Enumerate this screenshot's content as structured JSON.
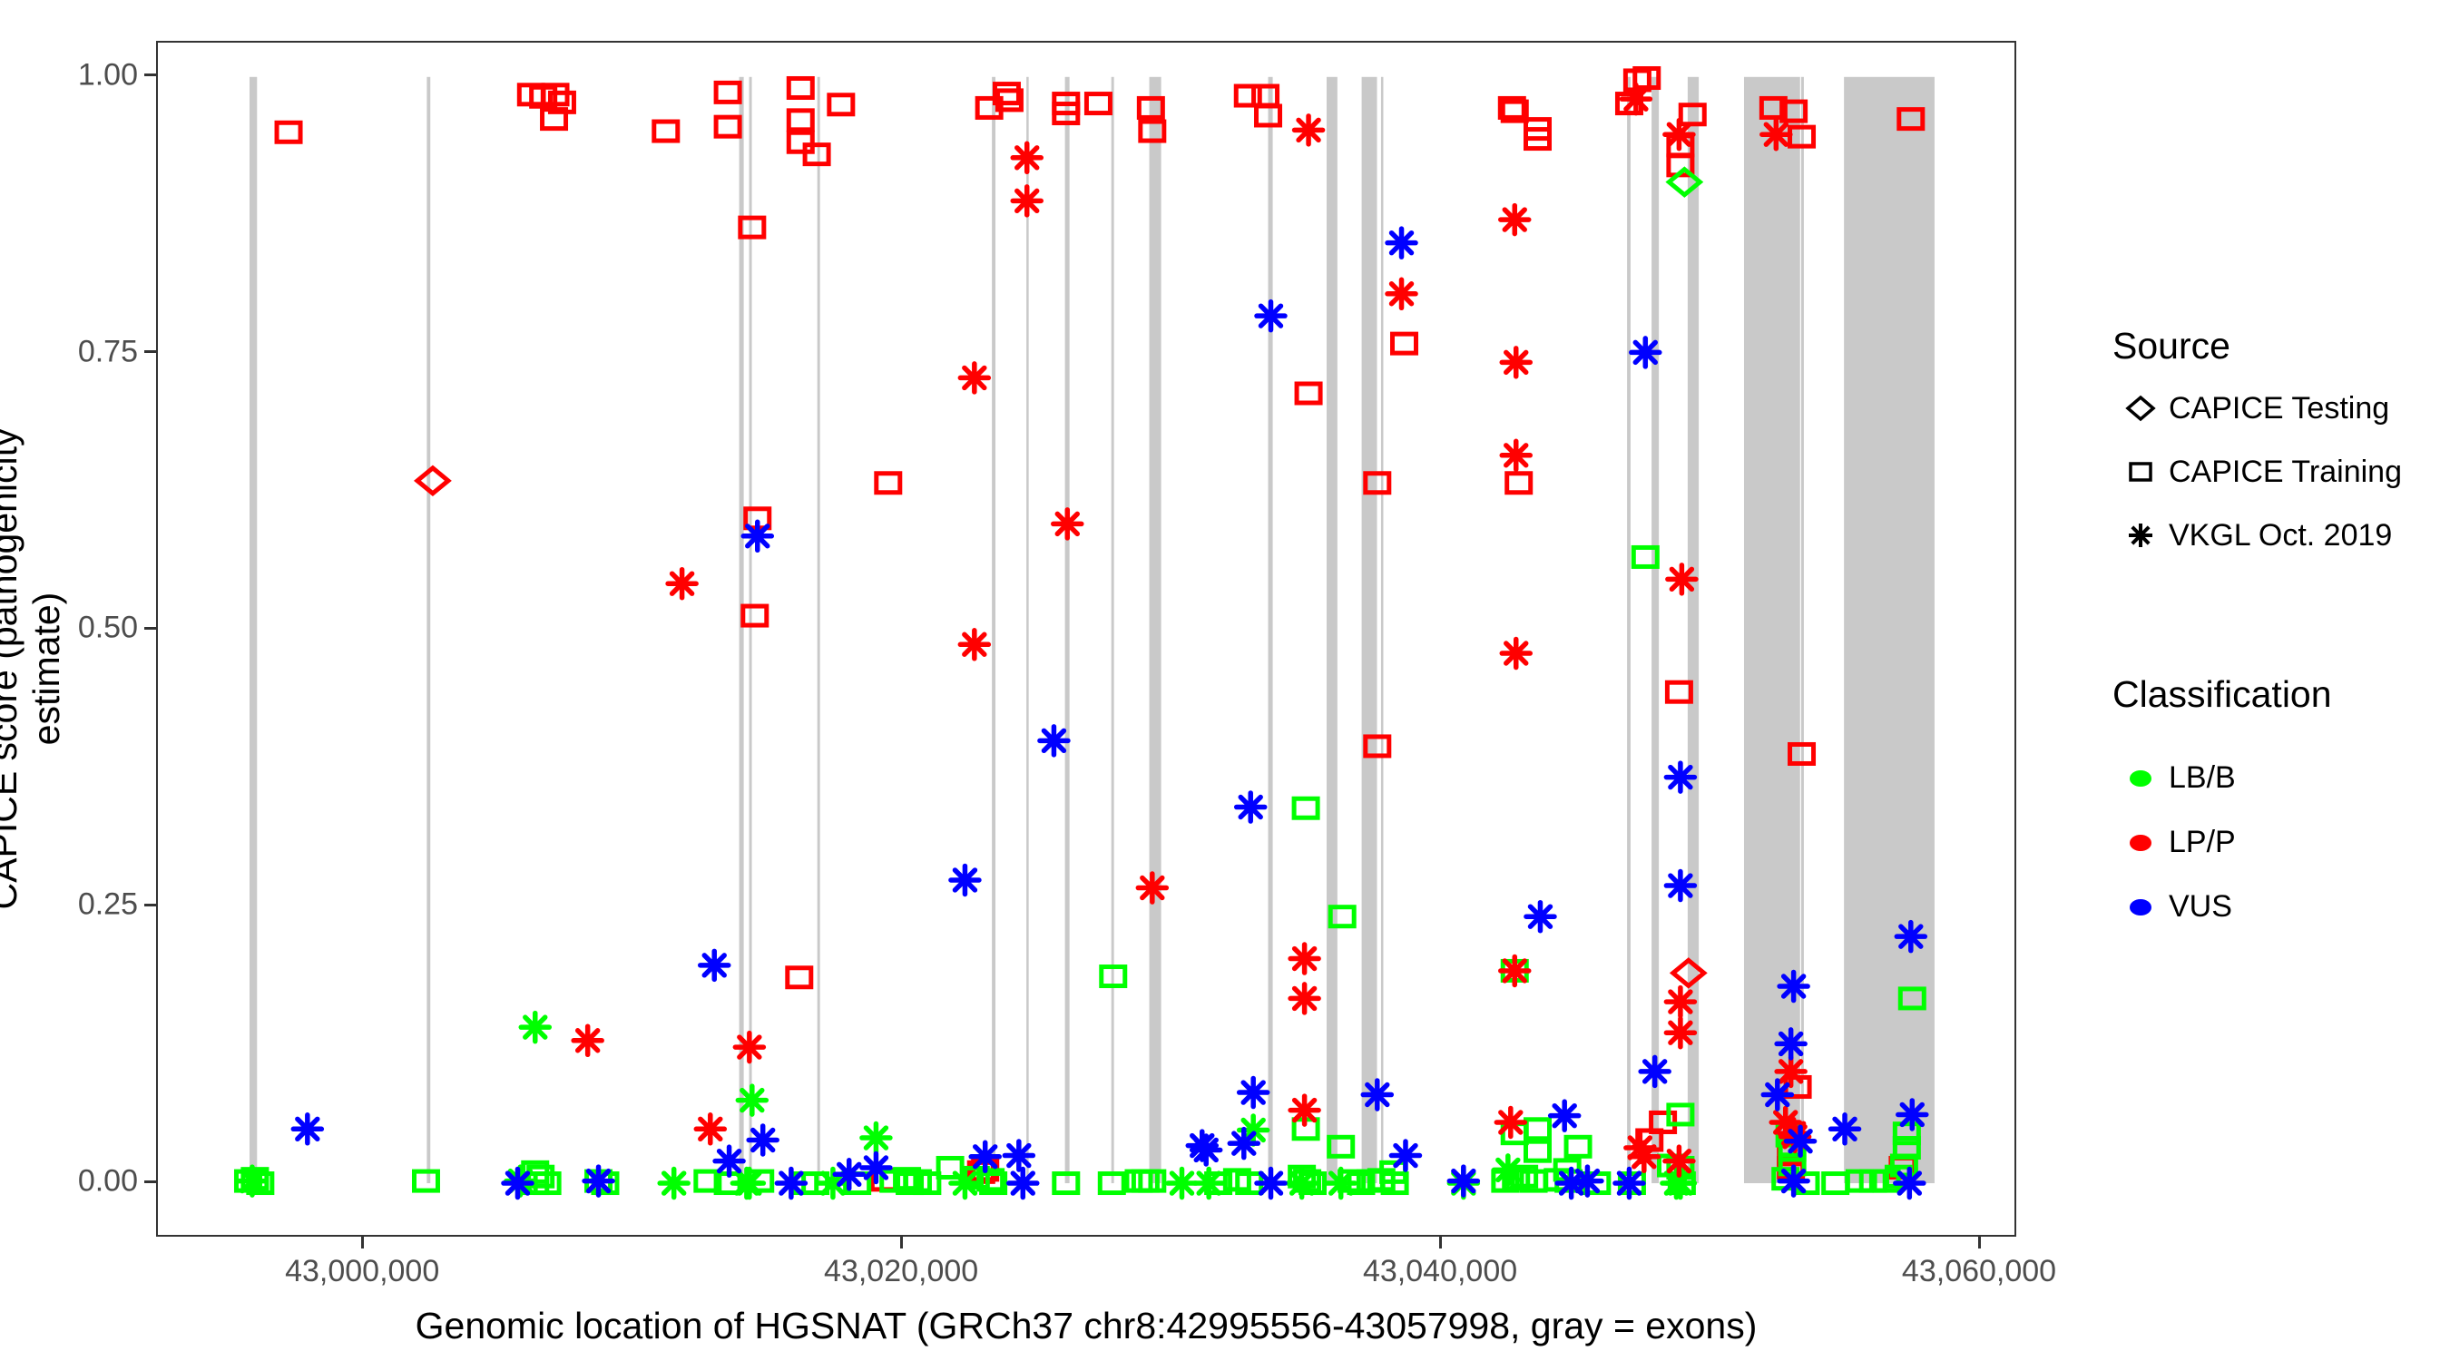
{
  "page": {
    "background": "#FFFFFF"
  },
  "colors": {
    "lbb_green": "#00FF00",
    "lpp_red": "#FF0000",
    "vus_blue": "#0000FF",
    "exon_gray": "#C9C9C9",
    "tick_text": "#4D4D4D",
    "panel_border": "#333333"
  },
  "legend": {
    "source": {
      "title": "Source",
      "items": [
        {
          "label": "CAPICE Testing",
          "marker": "diamond"
        },
        {
          "label": "CAPICE Training",
          "marker": "square"
        },
        {
          "label": "VKGL Oct. 2019",
          "marker": "asterisk"
        }
      ]
    },
    "classification": {
      "title": "Classification",
      "items": [
        {
          "label": "LB/B",
          "color": "#00FF00"
        },
        {
          "label": "LP/P",
          "color": "#FF0000"
        },
        {
          "label": "VUS",
          "color": "#0000FF"
        }
      ]
    }
  },
  "chart_data": {
    "type": "scatter",
    "title": "",
    "xlabel": "Genomic location of HGSNAT (GRCh37 chr8:42995556-43057998, gray = exons)",
    "ylabel": "CAPICE score (pathogenicity estimate)",
    "x_domain": [
      42992350,
      43061380
    ],
    "y_domain": [
      -0.05,
      1.031
    ],
    "grid": false,
    "legend_position": "right",
    "x_ticks": [
      {
        "value": 43000000,
        "label": "43,000,000"
      },
      {
        "value": 43020000,
        "label": "43,020,000"
      },
      {
        "value": 43040000,
        "label": "43,040,000"
      },
      {
        "value": 43060000,
        "label": "43,060,000"
      }
    ],
    "y_ticks": [
      {
        "value": 0.0,
        "label": "0.00"
      },
      {
        "value": 0.25,
        "label": "0.25"
      },
      {
        "value": 0.5,
        "label": "0.50"
      },
      {
        "value": 0.75,
        "label": "0.75"
      },
      {
        "value": 1.0,
        "label": "1.00"
      }
    ],
    "exons": [
      [
        42995750,
        42996030
      ],
      [
        43002330,
        43002460
      ],
      [
        43013920,
        43014090
      ],
      [
        43014290,
        43014390
      ],
      [
        43016820,
        43016920
      ],
      [
        43023300,
        43023430
      ],
      [
        43024580,
        43024650
      ],
      [
        43026010,
        43026180
      ],
      [
        43027730,
        43027830
      ],
      [
        43029140,
        43029580
      ],
      [
        43033550,
        43033720
      ],
      [
        43035720,
        43036120
      ],
      [
        43037020,
        43037590
      ],
      [
        43037740,
        43037810
      ],
      [
        43046870,
        43047000
      ],
      [
        43047780,
        43048050
      ],
      [
        43049120,
        43049530
      ],
      [
        43051210,
        43053290
      ],
      [
        43053330,
        43053430
      ],
      [
        43054920,
        43058280
      ]
    ],
    "series": [
      {
        "name": "CAPICE Training LP/P",
        "source": "CAPICE Training",
        "classification": "LP/P",
        "marker": "square",
        "color": "#FF0000",
        "points": [
          [
            42997200,
            0.95
          ],
          [
            43006200,
            0.984
          ],
          [
            43006650,
            0.982
          ],
          [
            43007100,
            0.984
          ],
          [
            43007350,
            0.977
          ],
          [
            43007050,
            0.962
          ],
          [
            43011200,
            0.951
          ],
          [
            43013500,
            0.986
          ],
          [
            43013500,
            0.955
          ],
          [
            43016200,
            0.99
          ],
          [
            43016200,
            0.961
          ],
          [
            43016200,
            0.941
          ],
          [
            43016800,
            0.93
          ],
          [
            43017700,
            0.975
          ],
          [
            43014400,
            0.864
          ],
          [
            43014600,
            0.601
          ],
          [
            43014500,
            0.513
          ],
          [
            43019450,
            0.633
          ],
          [
            43016150,
            0.186
          ],
          [
            43019300,
            0.003
          ],
          [
            43023200,
            0.972
          ],
          [
            43023850,
            0.985
          ],
          [
            43023950,
            0.979
          ],
          [
            43026050,
            0.976
          ],
          [
            43026050,
            0.967
          ],
          [
            43027250,
            0.976
          ],
          [
            43029200,
            0.972
          ],
          [
            43029250,
            0.951
          ],
          [
            43032800,
            0.983
          ],
          [
            43033450,
            0.983
          ],
          [
            43033550,
            0.965
          ],
          [
            43022900,
            0.01
          ],
          [
            43023050,
            0.012
          ],
          [
            43035050,
            0.714
          ],
          [
            43038600,
            0.759
          ],
          [
            43037600,
            0.633
          ],
          [
            43037600,
            0.395
          ],
          [
            43042600,
            0.972
          ],
          [
            43042700,
            0.969
          ],
          [
            43043550,
            0.953
          ],
          [
            43043550,
            0.944
          ],
          [
            43042850,
            0.633
          ],
          [
            43046950,
            0.976
          ],
          [
            43047250,
            0.997
          ],
          [
            43047600,
            0.999
          ],
          [
            43047700,
            0.039
          ],
          [
            43048200,
            0.055
          ],
          [
            43049300,
            0.966
          ],
          [
            43048850,
            0.938
          ],
          [
            43048850,
            0.92
          ],
          [
            43048800,
            0.444
          ],
          [
            43052300,
            0.972
          ],
          [
            43053050,
            0.969
          ],
          [
            43053350,
            0.946
          ],
          [
            43053350,
            0.388
          ],
          [
            43053200,
            0.087
          ],
          [
            43052950,
            0.026
          ],
          [
            43052950,
            0.014
          ],
          [
            43057400,
            0.962
          ],
          [
            43057100,
            0.014
          ]
        ]
      },
      {
        "name": "CAPICE Training LB/B",
        "source": "CAPICE Training",
        "classification": "LB/B",
        "marker": "square",
        "color": "#00FF00",
        "points": [
          [
            42995700,
            0.002
          ],
          [
            42995950,
            0.004
          ],
          [
            42996150,
            0
          ],
          [
            43002300,
            0.002
          ],
          [
            43006350,
            0.01
          ],
          [
            43006350,
            0
          ],
          [
            43006550,
            0.006
          ],
          [
            43006800,
            0
          ],
          [
            43008700,
            0.002
          ],
          [
            43008950,
            0
          ],
          [
            43012750,
            0.002
          ],
          [
            43013500,
            0
          ],
          [
            43014700,
            0.002
          ],
          [
            43016350,
            0
          ],
          [
            43016750,
            0
          ],
          [
            43018300,
            0
          ],
          [
            43019650,
            0.002
          ],
          [
            43020150,
            0.004
          ],
          [
            43020250,
            0
          ],
          [
            43020550,
            0.002
          ],
          [
            43020900,
            0
          ],
          [
            43021750,
            0.014
          ],
          [
            43022700,
            0.005
          ],
          [
            43023250,
            0.003
          ],
          [
            43023350,
            0
          ],
          [
            43026050,
            0
          ],
          [
            43027750,
            0
          ],
          [
            43027800,
            0.187
          ],
          [
            43028750,
            0.002
          ],
          [
            43029000,
            0.002
          ],
          [
            43029250,
            0.002
          ],
          [
            43031700,
            0
          ],
          [
            43032400,
            0.003
          ],
          [
            43032850,
            0
          ],
          [
            43034950,
            0.339
          ],
          [
            43036300,
            0.241
          ],
          [
            43034950,
            0.049
          ],
          [
            43036250,
            0.033
          ],
          [
            43034800,
            0.006
          ],
          [
            43035000,
            0.002
          ],
          [
            43035200,
            0
          ],
          [
            43036650,
            0.002
          ],
          [
            43037000,
            0
          ],
          [
            43037350,
            0.002
          ],
          [
            43037750,
            0.003
          ],
          [
            43038200,
            0.01
          ],
          [
            43038250,
            0
          ],
          [
            43042350,
            0.002
          ],
          [
            43042700,
            0.045
          ],
          [
            43042750,
            0.004
          ],
          [
            43043050,
            0.006
          ],
          [
            43043400,
            0.002
          ],
          [
            43043550,
            0.049
          ],
          [
            43043550,
            0.029
          ],
          [
            43042700,
            0.192
          ],
          [
            43045050,
            0.033
          ],
          [
            43044300,
            0.003
          ],
          [
            43044650,
            0.012
          ],
          [
            43044700,
            0.002
          ],
          [
            43045750,
            0
          ],
          [
            43047050,
            0
          ],
          [
            43047550,
            0.566
          ],
          [
            43048500,
            0.016
          ],
          [
            43048850,
            0.014
          ],
          [
            43048900,
            0
          ],
          [
            43048850,
            0.062
          ],
          [
            43052750,
            0.004
          ],
          [
            43052900,
            0.043
          ],
          [
            43053000,
            0.03
          ],
          [
            43053000,
            0.017
          ],
          [
            43053500,
            0
          ],
          [
            43054600,
            0
          ],
          [
            43055500,
            0.002
          ],
          [
            43056000,
            0.002
          ],
          [
            43056500,
            0.002
          ],
          [
            43056950,
            0.006
          ],
          [
            43057250,
            0.045
          ],
          [
            43057250,
            0.032
          ],
          [
            43057150,
            0.016
          ],
          [
            43057450,
            0.167
          ]
        ]
      },
      {
        "name": "VKGL Oct. 2019 LB/B",
        "source": "VKGL Oct. 2019",
        "classification": "LB/B",
        "marker": "asterisk",
        "color": "#00FF00",
        "points": [
          [
            42995850,
            0.002
          ],
          [
            43005800,
            0.002
          ],
          [
            43006350,
            0.141
          ],
          [
            43011500,
            0
          ],
          [
            43014200,
            0
          ],
          [
            43014300,
            0
          ],
          [
            43014400,
            0.075
          ],
          [
            43017400,
            0
          ],
          [
            43019000,
            0.041
          ],
          [
            43022300,
            0
          ],
          [
            43030350,
            0
          ],
          [
            43031350,
            0
          ],
          [
            43033000,
            0.048
          ],
          [
            43034800,
            0
          ],
          [
            43036250,
            0
          ],
          [
            43040800,
            0
          ],
          [
            43042450,
            0.012
          ],
          [
            43048700,
            0
          ],
          [
            43048850,
            0
          ]
        ]
      },
      {
        "name": "VKGL Oct. 2019 LP/P",
        "source": "VKGL Oct. 2019",
        "classification": "LP/P",
        "marker": "asterisk",
        "color": "#FF0000",
        "points": [
          [
            43008300,
            0.129
          ],
          [
            43011800,
            0.542
          ],
          [
            43012850,
            0.049
          ],
          [
            43014300,
            0.123
          ],
          [
            43022650,
            0.728
          ],
          [
            43022650,
            0.487
          ],
          [
            43024600,
            0.927
          ],
          [
            43024600,
            0.888
          ],
          [
            43026100,
            0.596
          ],
          [
            43029250,
            0.267
          ],
          [
            43034900,
            0.203
          ],
          [
            43034900,
            0.167
          ],
          [
            43034900,
            0.066
          ],
          [
            43035050,
            0.952
          ],
          [
            43038500,
            0.804
          ],
          [
            43042700,
            0.871
          ],
          [
            43042750,
            0.742
          ],
          [
            43042750,
            0.658
          ],
          [
            43042750,
            0.479
          ],
          [
            43042700,
            0.192
          ],
          [
            43042550,
            0.055
          ],
          [
            43047200,
            0.98
          ],
          [
            43047350,
            0.032
          ],
          [
            43047500,
            0.024
          ],
          [
            43048800,
            0.948
          ],
          [
            43048800,
            0.02
          ],
          [
            43048900,
            0.546
          ],
          [
            43048850,
            0.164
          ],
          [
            43048850,
            0.136
          ],
          [
            43052400,
            0.948
          ],
          [
            43052750,
            0.055
          ],
          [
            43052950,
            0.101
          ],
          [
            43053050,
            0.045
          ],
          [
            43053100,
            0.042
          ]
        ]
      },
      {
        "name": "VKGL Oct. 2019 VUS",
        "source": "VKGL Oct. 2019",
        "classification": "VUS",
        "marker": "asterisk",
        "color": "#0000FF",
        "points": [
          [
            42997900,
            0.049
          ],
          [
            43005700,
            0
          ],
          [
            43008700,
            0.002
          ],
          [
            43013000,
            0.197
          ],
          [
            43014600,
            0.585
          ],
          [
            43013550,
            0.02
          ],
          [
            43014800,
            0.039
          ],
          [
            43015850,
            0
          ],
          [
            43018000,
            0.008
          ],
          [
            43019000,
            0.014
          ],
          [
            43022300,
            0.274
          ],
          [
            43023050,
            0.024
          ],
          [
            43024300,
            0.025
          ],
          [
            43024450,
            0
          ],
          [
            43025600,
            0.4
          ],
          [
            43031100,
            0.034
          ],
          [
            43031250,
            0.03
          ],
          [
            43032650,
            0.036
          ],
          [
            43032900,
            0.34
          ],
          [
            43033000,
            0.082
          ],
          [
            43033650,
            0.784
          ],
          [
            43033650,
            0
          ],
          [
            43037600,
            0.08
          ],
          [
            43038500,
            0.85
          ],
          [
            43038650,
            0.025
          ],
          [
            43040800,
            0.002
          ],
          [
            43043650,
            0.241
          ],
          [
            43044550,
            0.061
          ],
          [
            43044800,
            0
          ],
          [
            43045400,
            0.002
          ],
          [
            43046950,
            0
          ],
          [
            43047550,
            0.751
          ],
          [
            43047900,
            0.101
          ],
          [
            43048850,
            0.367
          ],
          [
            43048850,
            0.269
          ],
          [
            43052450,
            0.08
          ],
          [
            43052950,
            0.126
          ],
          [
            43053050,
            0.178
          ],
          [
            43053050,
            0.002
          ],
          [
            43053300,
            0.038
          ],
          [
            43054950,
            0.049
          ],
          [
            43057400,
            0.223
          ],
          [
            43057450,
            0.062
          ],
          [
            43057350,
            0
          ]
        ]
      },
      {
        "name": "CAPICE Testing LP/P",
        "source": "CAPICE Testing",
        "classification": "LP/P",
        "marker": "diamond",
        "color": "#FF0000",
        "points": [
          [
            43002550,
            0.635
          ],
          [
            43049150,
            0.19
          ]
        ]
      },
      {
        "name": "CAPICE Testing LB/B",
        "source": "CAPICE Testing",
        "classification": "LB/B",
        "marker": "diamond",
        "color": "#00FF00",
        "points": [
          [
            43049000,
            0.905
          ]
        ]
      }
    ]
  }
}
